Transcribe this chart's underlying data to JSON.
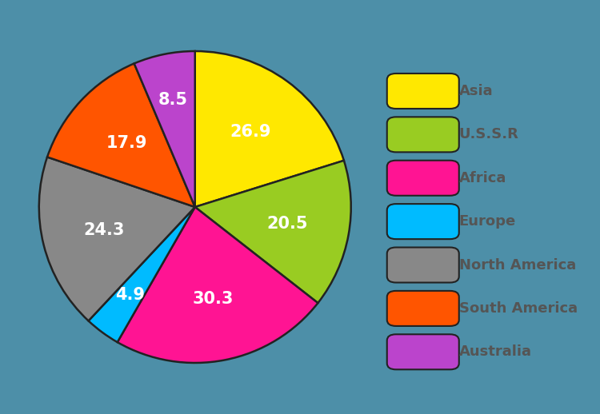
{
  "labels": [
    "Asia",
    "U.S.S.R",
    "Africa",
    "Europe",
    "North America",
    "South America",
    "Australia"
  ],
  "values": [
    26.9,
    20.5,
    30.3,
    4.9,
    24.3,
    17.9,
    8.5
  ],
  "colors": [
    "#FFE800",
    "#99CC22",
    "#FF1493",
    "#00BBFF",
    "#888888",
    "#FF5500",
    "#BB44CC"
  ],
  "text_color": "#FFFFFF",
  "background_color": "#4D8FA8",
  "legend_text_color": "#555555",
  "startangle": 90,
  "figsize": [
    7.5,
    5.18
  ],
  "dpi": 100
}
